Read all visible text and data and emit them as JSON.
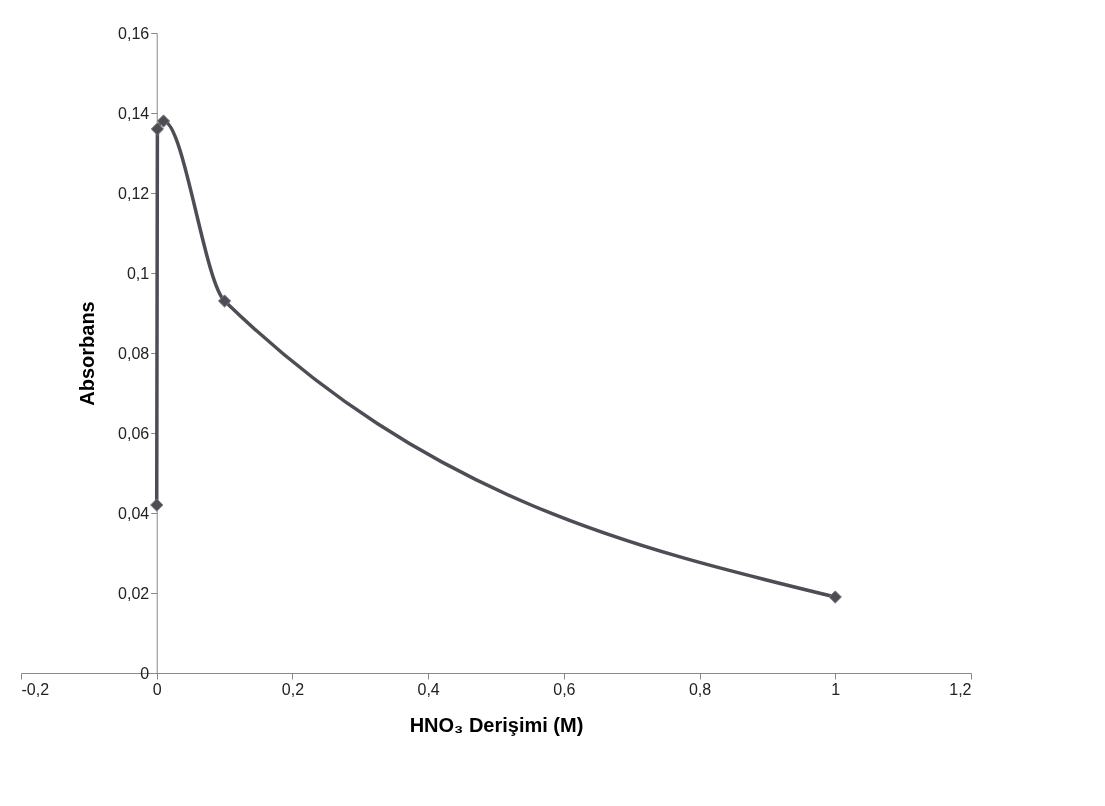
{
  "chart_data": {
    "type": "line",
    "xlabel": "HNO₃ Derişimi (M)",
    "ylabel": "Absorbans",
    "x": [
      0,
      0.001,
      0.01,
      0.1,
      1
    ],
    "series": [
      {
        "color": "#4d4d55",
        "values": [
          0.042,
          0.136,
          0.138,
          0.093,
          0.019
        ]
      }
    ],
    "xlim": [
      -0.2,
      1.2
    ],
    "xticks": [
      {
        "value": -0.2,
        "label": "-0,2"
      },
      0,
      {
        "value": 0.2,
        "label": "0,2"
      },
      {
        "value": 0.4,
        "label": "0,4"
      },
      {
        "value": 0.6,
        "label": "0,6"
      },
      {
        "value": 0.8,
        "label": "0,8"
      },
      1,
      {
        "value": 1.2,
        "label": "1,2"
      }
    ],
    "ylim": [
      0,
      0.16
    ],
    "yticks": [
      0,
      {
        "value": 0.02,
        "label": "0,02"
      },
      {
        "value": 0.04,
        "label": "0,04"
      },
      {
        "value": 0.06,
        "label": "0,06"
      },
      {
        "value": 0.08,
        "label": "0,08"
      },
      {
        "value": 0.1,
        "label": "0,1"
      },
      {
        "value": 0.12,
        "label": "0,12"
      },
      {
        "value": 0.14,
        "label": "0,14"
      },
      {
        "value": 0.16,
        "label": "0,16"
      }
    ],
    "grid": false,
    "marker": "diamond",
    "line_style": "solid"
  }
}
